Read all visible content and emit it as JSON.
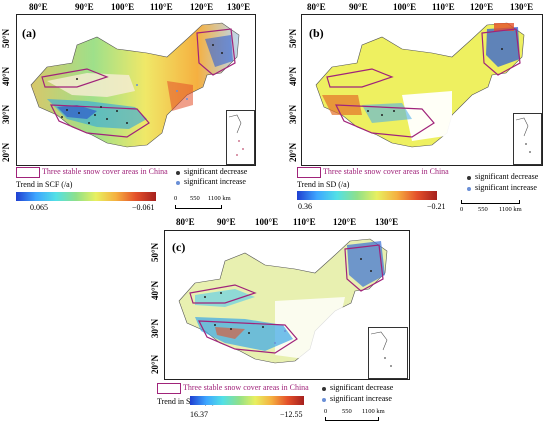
{
  "colors": {
    "stable_area_outline": "#a0237a",
    "decrease_dot": "#333333",
    "increase_dot": "#6a8fd6",
    "trend_ramp": [
      "#1f3fd1",
      "#3ea6ff",
      "#52e0e6",
      "#8fe08a",
      "#e8f060",
      "#f5b040",
      "#e4502a",
      "#a5201e"
    ]
  },
  "panels": [
    {
      "label": "(a)",
      "lon_ticks": [
        "80°E",
        "90°E",
        "100°E",
        "110°E",
        "120°E",
        "130°E"
      ],
      "lat_ticks": [
        "50°N",
        "40°N",
        "30°N",
        "20°N"
      ],
      "legend": {
        "area_label": "Three stable snow cover areas in China",
        "trend_label": "Trend in SCF (/a)",
        "cbar_min": "0.065",
        "cbar_max": "−0.061",
        "sig_decrease": "significant decrease",
        "sig_increase": "significant increase"
      },
      "scale": {
        "ticks": [
          "0",
          "550",
          "1100 km"
        ]
      }
    },
    {
      "label": "(b)",
      "lon_ticks": [
        "80°E",
        "90°E",
        "100°E",
        "110°E",
        "120°E",
        "130°E"
      ],
      "lat_ticks": [
        "50°N",
        "40°N",
        "30°N",
        "20°N"
      ],
      "legend": {
        "area_label": "Three stable snow cover areas in China",
        "trend_label": "Trend in SD (/a)",
        "cbar_min": "0.36",
        "cbar_max": "−0.21",
        "sig_decrease": "significant decrease",
        "sig_increase": "significant increase"
      },
      "scale": {
        "ticks": [
          "0",
          "550",
          "1100 km"
        ]
      }
    },
    {
      "label": "(c)",
      "lon_ticks": [
        "80°E",
        "90°E",
        "100°E",
        "110°E",
        "120°E",
        "130°E"
      ],
      "lat_ticks": [
        "50°N",
        "40°N",
        "30°N",
        "20°N"
      ],
      "legend": {
        "area_label": "Three stable snow cover areas in China",
        "trend_label": "Trend in SCD (/a)",
        "cbar_min": "16.37",
        "cbar_max": "−12.55",
        "sig_decrease": "significant decrease",
        "sig_increase": "significant increase"
      },
      "scale": {
        "ticks": [
          "0",
          "550",
          "1100 km"
        ]
      }
    }
  ]
}
